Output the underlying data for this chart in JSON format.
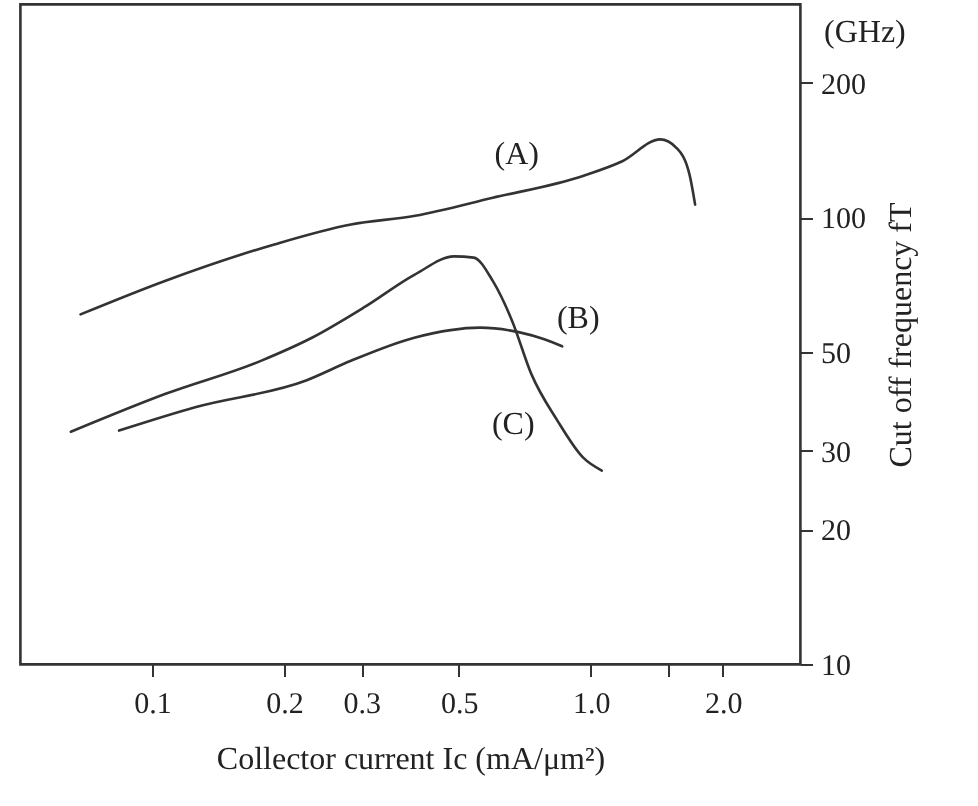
{
  "chart_data": {
    "type": "line",
    "xlabel": "Collector current Ic (mA/μm²)",
    "ylabel": "Cut off  frequency fT",
    "log": "xy",
    "grid": false,
    "marker": "none",
    "line_style": "solid",
    "xlim": [
      0.05,
      3
    ],
    "ylim": [
      10,
      300
    ],
    "xticks": [
      0.1,
      0.2,
      0.3,
      0.5,
      {
        "value": 1,
        "label": "1.0"
      },
      {
        "value": 1.5,
        "label": null
      },
      {
        "value": 2,
        "label": "2.0"
      }
    ],
    "yticks": [
      10,
      20,
      30,
      50,
      100,
      200
    ],
    "series": [
      {
        "name": "(A)",
        "color": "#333333",
        "x": [
          0.0687,
          0.107,
          0.19,
          0.284,
          0.398,
          0.598,
          0.96,
          1.18,
          1.44,
          1.57,
          1.68,
          1.73
        ],
        "values": [
          60.6,
          72,
          86.9,
          96.3,
          100.7,
          110.5,
          123.7,
          133.4,
          149.3,
          142.8,
          124.5,
          106.7
        ]
      },
      {
        "name": "(B)",
        "color": "#333333",
        "x": [
          0.0841,
          0.126,
          0.2245,
          0.284,
          0.398,
          0.56,
          0.685,
          0.784,
          0.861
        ],
        "values": [
          33.3,
          37.6,
          43.1,
          47.7,
          53.8,
          56.6,
          55.3,
          53.3,
          51.4
        ]
      },
      {
        "name": "(C)",
        "color": "#333333",
        "x": [
          0.0653,
          0.107,
          0.177,
          0.232,
          0.304,
          0.398,
          0.488,
          0.541,
          0.598,
          0.662,
          0.732,
          0.839,
          0.96,
          1.06
        ],
        "values": [
          33.1,
          40.2,
          47.7,
          53.8,
          62.8,
          74.5,
          81.7,
          81.2,
          72,
          58.6,
          44.6,
          35.1,
          29,
          27.1
        ]
      }
    ],
    "annotations": [
      "(GHz)"
    ]
  }
}
